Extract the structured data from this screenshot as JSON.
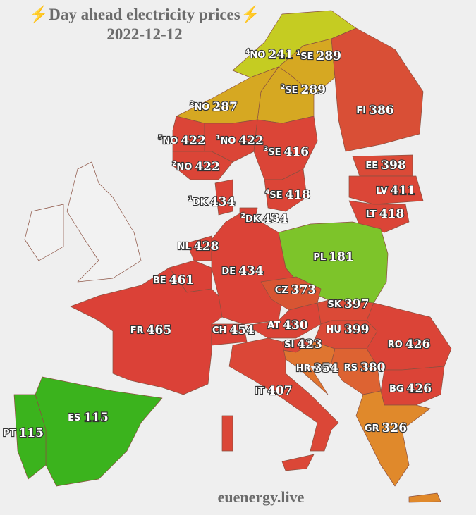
{
  "header": {
    "title": "⚡Day ahead electricity prices⚡",
    "date": "2022-12-12"
  },
  "footer": "euenergy.live",
  "regions": [
    {
      "zone": "4",
      "code": "NO",
      "price": 241,
      "color": "#c5cc22"
    },
    {
      "zone": "1",
      "code": "SE",
      "price": 289,
      "color": "#d6a822"
    },
    {
      "zone": "2",
      "code": "SE",
      "price": 289,
      "color": "#d6a822"
    },
    {
      "zone": "3",
      "code": "NO",
      "price": 287,
      "color": "#d6a822"
    },
    {
      "code": "FI",
      "price": 386,
      "color": "#d94f36"
    },
    {
      "zone": "5",
      "code": "NO",
      "price": 422,
      "color": "#db4537"
    },
    {
      "zone": "1",
      "code": "NO",
      "price": 422,
      "color": "#db4537"
    },
    {
      "zone": "3",
      "code": "SE",
      "price": 416,
      "color": "#db4537"
    },
    {
      "zone": "2",
      "code": "NO",
      "price": 422,
      "color": "#db4537"
    },
    {
      "code": "EE",
      "price": 398,
      "color": "#db4a37"
    },
    {
      "code": "LV",
      "price": 411,
      "color": "#db4637"
    },
    {
      "zone": "1",
      "code": "DK",
      "price": 434,
      "color": "#db4337"
    },
    {
      "zone": "4",
      "code": "SE",
      "price": 418,
      "color": "#db4537"
    },
    {
      "zone": "2",
      "code": "DK",
      "price": 434,
      "color": "#db4337"
    },
    {
      "code": "LT",
      "price": 418,
      "color": "#db4537"
    },
    {
      "code": "NL",
      "price": 428,
      "color": "#db4437"
    },
    {
      "code": "PL",
      "price": 181,
      "color": "#7dc42a"
    },
    {
      "code": "DE",
      "price": 434,
      "color": "#db4337"
    },
    {
      "code": "BE",
      "price": 461,
      "color": "#db4137"
    },
    {
      "code": "CZ",
      "price": 373,
      "color": "#d85533"
    },
    {
      "code": "SK",
      "price": 397,
      "color": "#db4a37"
    },
    {
      "code": "FR",
      "price": 465,
      "color": "#db4137"
    },
    {
      "code": "CH",
      "price": 454,
      "color": "#db4237"
    },
    {
      "code": "AT",
      "price": 430,
      "color": "#db4437"
    },
    {
      "code": "HU",
      "price": 399,
      "color": "#db4a37"
    },
    {
      "code": "SI",
      "price": 423,
      "color": "#db4537"
    },
    {
      "code": "RO",
      "price": 426,
      "color": "#db4437"
    },
    {
      "code": "HR",
      "price": 354,
      "color": "#df7530"
    },
    {
      "code": "RS",
      "price": 380,
      "color": "#dd6332"
    },
    {
      "code": "IT",
      "price": 407,
      "color": "#db4737"
    },
    {
      "code": "BG",
      "price": 426,
      "color": "#db4437"
    },
    {
      "code": "ES",
      "price": 115,
      "color": "#3bb31d"
    },
    {
      "code": "PT",
      "price": 115,
      "color": "#3bb31d"
    },
    {
      "code": "GR",
      "price": 326,
      "color": "#e0892b"
    }
  ]
}
